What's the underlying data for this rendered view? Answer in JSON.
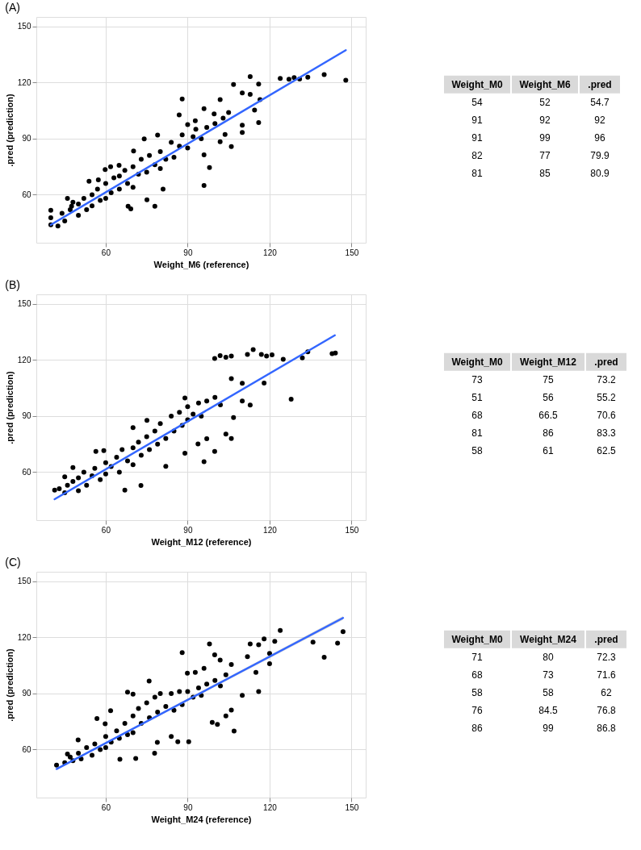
{
  "chart_data": [
    {
      "type": "scatter",
      "title": "(A)",
      "xlabel": "Weight_M6 (reference)",
      "ylabel": ".pred (prediction)",
      "xlim": [
        34.6,
        155.2
      ],
      "ylim": [
        34.3,
        155.1
      ],
      "xticks": [
        60,
        90,
        120,
        150
      ],
      "yticks": [
        60,
        90,
        120,
        150
      ],
      "grid": true,
      "marker": "circle",
      "series": [
        {
          "type": "scatter",
          "color": "#000000",
          "x": [
            39.9,
            39.9,
            39.9,
            42.5,
            46,
            47.5,
            53.9,
            57.3,
            59.8,
            61.8,
            64.9,
            68.2,
            69.2,
            70.2,
            74.1,
            75.1,
            78,
            79,
            81,
            86.9,
            88,
            90,
            92.8,
            96,
            96,
            98,
            96,
            99.7,
            101.9,
            101.9,
            103.7,
            106,
            106.8,
            110,
            110,
            110,
            112.9,
            112.9,
            116,
            116,
            114.5,
            116.5,
            123.9,
            127.1,
            129,
            131,
            134,
            140,
            147.9,
            44,
            45,
            47,
            48,
            50,
            50,
            52,
            53,
            55,
            55,
            57,
            58,
            60,
            60,
            62,
            63,
            65,
            65,
            67,
            68,
            70,
            70,
            72,
            73,
            75,
            76,
            78,
            80,
            80,
            82,
            84,
            85,
            87,
            88,
            90,
            92,
            93,
            95,
            97,
            100,
            103,
            105
          ],
          "values": [
            51.7,
            47.7,
            43.9,
            43.2,
            58,
            53.8,
            67.2,
            67.9,
            73.5,
            75,
            75.7,
            53.8,
            52.4,
            83.4,
            89.8,
            57.3,
            53.8,
            91.9,
            63,
            102.7,
            111.2,
            97.5,
            99.6,
            106,
            64.9,
            74.5,
            81.3,
            103.2,
            110.9,
            88.3,
            92.2,
            85.8,
            119,
            114.4,
            97.2,
            93.3,
            123.2,
            113.7,
            119.2,
            98.6,
            105.3,
            110.9,
            122.2,
            121.8,
            122.6,
            121.9,
            122.8,
            124.3,
            121.2,
            50,
            46,
            52,
            56,
            49,
            55,
            58,
            52,
            60,
            54,
            63,
            57,
            66,
            58,
            61,
            69,
            63,
            70,
            73,
            66,
            75,
            64,
            71,
            79,
            72,
            81,
            76,
            83,
            74,
            79,
            88,
            80,
            86,
            92,
            85,
            91,
            95,
            90,
            96,
            98,
            101,
            104
          ]
        },
        {
          "type": "line",
          "color": "#3366ff",
          "marker": "none",
          "x": [
            39.9,
            147.9
          ],
          "values": [
            43.9,
            137.3
          ]
        }
      ]
    },
    {
      "type": "other",
      "categories": [
        "Weight_M0",
        "Weight_M6",
        ".pred"
      ],
      "cell_labels": [
        [
          "54",
          "52",
          "54.7"
        ],
        [
          "91",
          "92",
          "92"
        ],
        [
          "91",
          "99",
          "96"
        ],
        [
          "82",
          "77",
          "79.9"
        ],
        [
          "81",
          "85",
          "80.9"
        ]
      ]
    },
    {
      "type": "scatter",
      "title": "(B)",
      "xlabel": "Weight_M12 (reference)",
      "ylabel": ".pred (prediction)",
      "xlim": [
        34.6,
        155.2
      ],
      "ylim": [
        34.3,
        155.1
      ],
      "xticks": [
        60,
        90,
        120,
        150
      ],
      "yticks": [
        60,
        90,
        120,
        150
      ],
      "grid": true,
      "marker": "circle",
      "series": [
        {
          "type": "scatter",
          "color": "#000000",
          "x": [
            41.3,
            43,
            45,
            48,
            56.4,
            59.3,
            67,
            70,
            72.9,
            75.1,
            82,
            89,
            89,
            93.8,
            96,
            97,
            99.9,
            99.9,
            101.9,
            104,
            106,
            106,
            104,
            106,
            106.8,
            110,
            110,
            112.9,
            111.9,
            114,
            117,
            118,
            118.9,
            120.9,
            125,
            127.9,
            132,
            134,
            142.9,
            144.1,
            45,
            46,
            48,
            50,
            50,
            52,
            53,
            55,
            56,
            58,
            60,
            60,
            62,
            64,
            65,
            66,
            68,
            70,
            70,
            72,
            73,
            75,
            76,
            78,
            79,
            80,
            82,
            84,
            85,
            87,
            88,
            90,
            90,
            92,
            94,
            95,
            97,
            100,
            102
          ],
          "values": [
            50.4,
            51.1,
            57.5,
            62.4,
            71.1,
            71.5,
            50.4,
            83.8,
            52.8,
            87.7,
            63.1,
            99.7,
            70.1,
            75.1,
            65.6,
            77.9,
            120.8,
            71.1,
            122.3,
            121.5,
            122.1,
            110,
            80.4,
            78,
            89.2,
            107.5,
            98,
            95.9,
            123,
            125.5,
            123,
            107.6,
            122.1,
            122.7,
            120.4,
            99,
            121.1,
            124.4,
            123.4,
            123.7,
            49,
            53,
            55,
            50,
            57,
            60,
            53,
            58,
            62,
            56,
            65,
            59,
            63,
            68,
            60,
            72,
            66,
            73,
            64,
            76,
            69,
            79,
            72,
            82,
            75,
            86,
            78,
            90,
            82,
            92,
            85,
            95,
            88,
            91,
            97,
            90,
            98,
            100,
            96
          ]
        },
        {
          "type": "line",
          "color": "#3366ff",
          "marker": "none",
          "x": [
            41.3,
            143.9
          ],
          "values": [
            45.5,
            133.2
          ]
        }
      ]
    },
    {
      "type": "other",
      "categories": [
        "Weight_M0",
        "Weight_M12",
        ".pred"
      ],
      "cell_labels": [
        [
          "73",
          "75",
          "73.2"
        ],
        [
          "51",
          "56",
          "55.2"
        ],
        [
          "68",
          "66.5",
          "70.6"
        ],
        [
          "81",
          "86",
          "83.3"
        ],
        [
          "58",
          "61",
          "62.5"
        ]
      ]
    },
    {
      "type": "scatter",
      "title": "(C)",
      "xlabel": "Weight_M24 (reference)",
      "ylabel": ".pred (prediction)",
      "xlim": [
        34.6,
        155.2
      ],
      "ylim": [
        34.3,
        155.1
      ],
      "xticks": [
        60,
        90,
        120,
        150
      ],
      "yticks": [
        60,
        90,
        120,
        150
      ],
      "grid": true,
      "marker": "circle",
      "series": [
        {
          "type": "scatter",
          "color": "#000000",
          "x": [
            42,
            46,
            49.9,
            56.8,
            59.8,
            61.8,
            65.2,
            68,
            70,
            71,
            75.9,
            77.9,
            78.9,
            84,
            86.4,
            88,
            89.9,
            90.4,
            92.8,
            96,
            98,
            99,
            99.9,
            100.9,
            101.9,
            104,
            106,
            106,
            107,
            110,
            111.9,
            112.9,
            115,
            116,
            116,
            118,
            120,
            120,
            121.9,
            123.9,
            135.9,
            140,
            144.9,
            146.9,
            45,
            47,
            48,
            50,
            51,
            53,
            55,
            56,
            58,
            60,
            60,
            62,
            64,
            65,
            67,
            68,
            70,
            70,
            72,
            73,
            75,
            76,
            78,
            79,
            80,
            82,
            84,
            85,
            87,
            88,
            90,
            92,
            94,
            95,
            97,
            100,
            102,
            104
          ],
          "values": [
            51.7,
            57.6,
            65.1,
            76.6,
            73.8,
            80.8,
            54.8,
            90.7,
            89.6,
            55.2,
            96.6,
            58,
            63.9,
            67,
            64.2,
            111.8,
            100.8,
            64.2,
            101.3,
            103.4,
            116.5,
            74.5,
            110.7,
            73.4,
            107.9,
            78,
            105.5,
            81.1,
            69.9,
            89,
            109.7,
            116.5,
            101.3,
            116.1,
            91,
            119.2,
            111.4,
            105.9,
            117.9,
            123.7,
            117.5,
            109.4,
            116.9,
            123.1,
            53,
            56,
            54,
            58,
            55,
            61,
            57,
            63,
            60,
            67,
            61,
            64,
            70,
            66,
            74,
            68,
            78,
            69,
            82,
            74,
            85,
            77,
            88,
            80,
            90,
            83,
            90,
            81,
            91,
            84,
            91,
            88,
            93,
            89,
            95,
            97,
            94,
            100
          ]
        },
        {
          "type": "line",
          "color": "#3366ff",
          "marker": "none",
          "x": [
            42,
            146.9
          ],
          "values": [
            49.6,
            130.4
          ],
          "lower": [
            49.3,
            129.4
          ],
          "upper": [
            49.9,
            131.4
          ]
        }
      ]
    },
    {
      "type": "other",
      "categories": [
        "Weight_M0",
        "Weight_M24",
        ".pred"
      ],
      "cell_labels": [
        [
          "71",
          "80",
          "72.3"
        ],
        [
          "68",
          "73",
          "71.6"
        ],
        [
          "58",
          "58",
          "62"
        ],
        [
          "76",
          "84.5",
          "76.8"
        ],
        [
          "86",
          "99",
          "86.8"
        ]
      ]
    }
  ]
}
